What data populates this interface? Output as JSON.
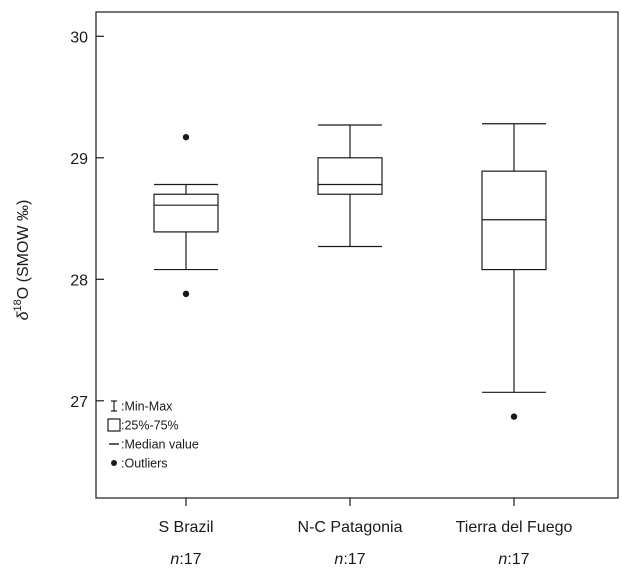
{
  "chart_data": {
    "type": "boxplot",
    "ylabel": {
      "prefix": "δ",
      "superscript": "18",
      "suffix": "O (SMOW ‰)"
    },
    "ylim": [
      26.2,
      30.2
    ],
    "yticks": [
      "27",
      "28",
      "29",
      "30"
    ],
    "grid": false,
    "categories": [
      "S Brazil",
      "N-C Patagonia",
      "Tierra del Fuego"
    ],
    "n_labels": [
      {
        "italic": "n",
        "rest": ":17"
      },
      {
        "italic": "n",
        "rest": ":17"
      },
      {
        "italic": "n",
        "rest": ":17"
      }
    ],
    "boxes": [
      {
        "min": 28.08,
        "q1": 28.39,
        "median": 28.61,
        "q3": 28.7,
        "max": 28.78,
        "outliers": [
          29.17,
          27.88
        ]
      },
      {
        "min": 28.27,
        "q1": 28.7,
        "median": 28.78,
        "q3": 29.0,
        "max": 29.27,
        "outliers": []
      },
      {
        "min": 27.07,
        "q1": 28.08,
        "median": 28.49,
        "q3": 28.89,
        "max": 29.28,
        "outliers": [
          26.87
        ]
      }
    ],
    "legend": {
      "placement": "bottom-left",
      "items": [
        {
          "symbol": "whisker",
          "label": ":Min-Max"
        },
        {
          "symbol": "box",
          "label": ":25%-75%"
        },
        {
          "symbol": "median",
          "label": ":Median value"
        },
        {
          "symbol": "outlier",
          "label": ":Outliers"
        }
      ]
    }
  }
}
